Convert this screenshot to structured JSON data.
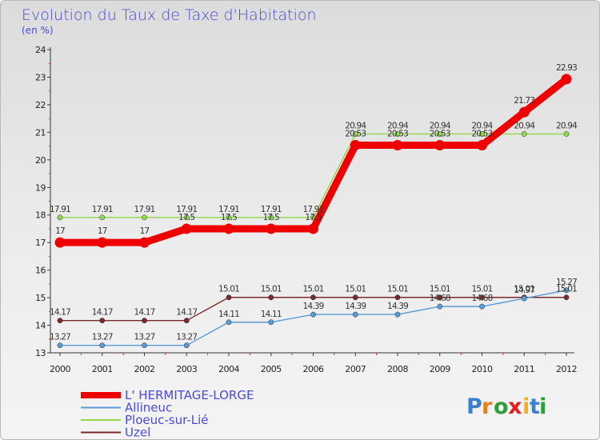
{
  "chart_data": {
    "type": "line",
    "title": "Evolution du Taux de Taxe d'Habitation",
    "unit_label": "(en %)",
    "x": [
      "2000",
      "2001",
      "2002",
      "2003",
      "2004",
      "2005",
      "2006",
      "2007",
      "2008",
      "2009",
      "2010",
      "2011",
      "2012"
    ],
    "ylim": [
      13,
      24
    ],
    "yticks": [
      13,
      14,
      15,
      16,
      17,
      18,
      19,
      20,
      21,
      22,
      23,
      24
    ],
    "grid": false,
    "legend_position": "bottom-left",
    "series": [
      {
        "name": "L' HERMITAGE-LORGE",
        "color": "#ee0000",
        "values": [
          17,
          17,
          17,
          17.5,
          17.5,
          17.5,
          17.5,
          20.53,
          20.53,
          20.53,
          20.53,
          21.73,
          22.93
        ],
        "labels": [
          "17",
          "17",
          "17",
          "17.5",
          "17.5",
          "17.5",
          "17.5",
          "20.53",
          "20.53",
          "20.53",
          "20.53",
          "21.73",
          "22.93"
        ]
      },
      {
        "name": "Allineuc",
        "color": "#5b9bd5",
        "values": [
          13.27,
          13.27,
          13.27,
          13.27,
          14.11,
          14.11,
          14.39,
          14.39,
          14.39,
          14.68,
          14.68,
          14.97,
          15.27
        ],
        "labels": [
          "13.27",
          "13.27",
          "13.27",
          "13.27",
          "14.11",
          "14.11",
          "14.39",
          "14.39",
          "14.39",
          "14.68",
          "14.68",
          "14.97",
          "15.27"
        ]
      },
      {
        "name": "Ploeuc-sur-Lié",
        "color": "#8fd84a",
        "values": [
          17.91,
          17.91,
          17.91,
          17.91,
          17.91,
          17.91,
          17.91,
          20.94,
          20.94,
          20.94,
          20.94,
          20.94,
          20.94
        ],
        "labels": [
          "17.91",
          "17.91",
          "17.91",
          "17.91",
          "17.91",
          "17.91",
          "17.91",
          "20.94",
          "20.94",
          "20.94",
          "20.94",
          "20.94",
          "20.94"
        ]
      },
      {
        "name": "Uzel",
        "color": "#7a2a2a",
        "values": [
          14.17,
          14.17,
          14.17,
          14.17,
          15.01,
          15.01,
          15.01,
          15.01,
          15.01,
          15.01,
          15.01,
          15.01,
          15.01
        ],
        "labels": [
          "14.17",
          "14.17",
          "14.17",
          "14.17",
          "15.01",
          "15.01",
          "15.01",
          "15.01",
          "15.01",
          "15.01",
          "15.01",
          "15.01",
          "15.01"
        ]
      }
    ]
  },
  "brand": {
    "letters": [
      "P",
      "r",
      "o",
      "x",
      "i",
      "t",
      "i"
    ],
    "colors": [
      "#3a7fd0",
      "#e67e22",
      "#2e9e3a",
      "#e02020",
      "#f0b020",
      "#3a7fd0",
      "#2e9e3a"
    ]
  }
}
